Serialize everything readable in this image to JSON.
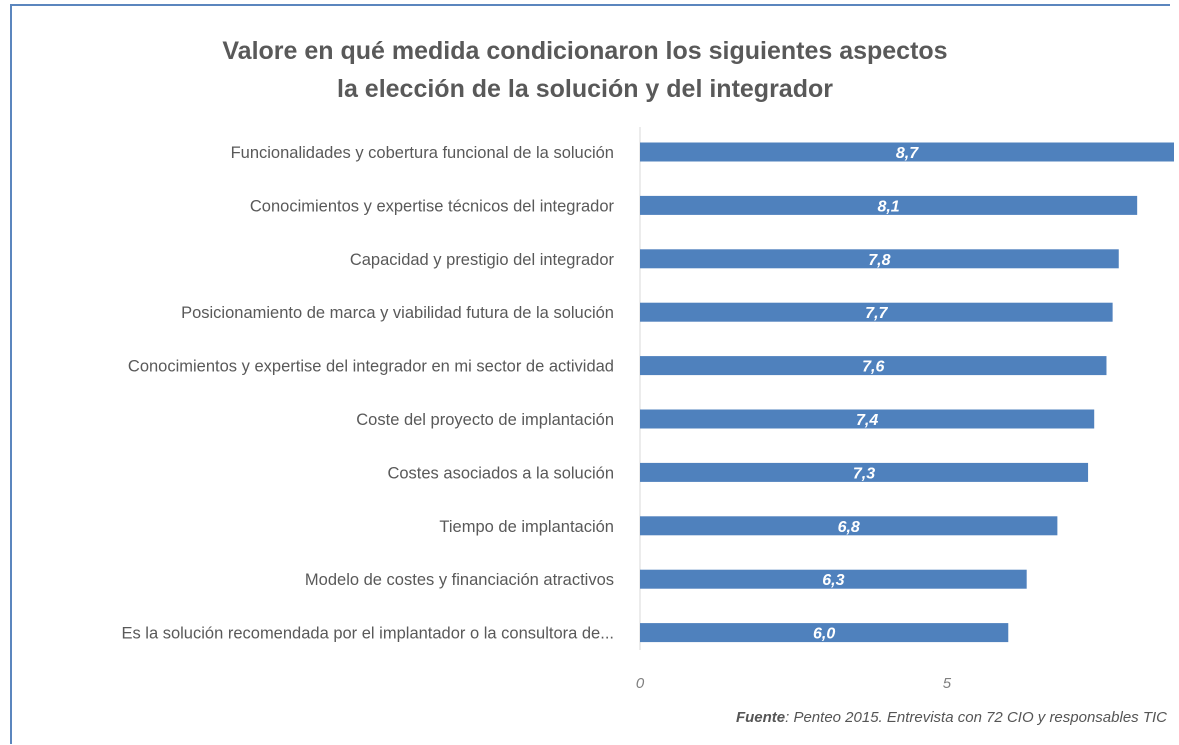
{
  "title_line1": "Valore en qué medida condicionaron los siguientes aspectos",
  "title_line2": "la elección de la solución y del integrador",
  "source_label": "Fuente",
  "source_text": ": Penteo 2015. Entrevista con 72 CIO y responsables TIC",
  "colors": {
    "bar": "#4f81bd",
    "frame": "#5b86be",
    "label": "#595959"
  },
  "chart_data": {
    "type": "bar",
    "orientation": "horizontal",
    "categories": [
      "Funcionalidades y cobertura funcional de la solución",
      "Conocimientos y expertise técnicos del integrador",
      "Capacidad y prestigio del integrador",
      "Posicionamiento de marca y viabilidad futura de la solución",
      "Conocimientos y expertise del integrador en mi sector de actividad",
      "Coste del proyecto de implantación",
      "Costes asociados a la solución",
      "Tiempo de implantación",
      "Modelo de costes y financiación atractivos",
      "Es la solución recomendada por el implantador o la consultora de..."
    ],
    "values": [
      8.7,
      8.1,
      7.8,
      7.7,
      7.6,
      7.4,
      7.3,
      6.8,
      6.3,
      6.0
    ],
    "data_labels": [
      "8,7",
      "8,1",
      "7,8",
      "7,7",
      "7,6",
      "7,4",
      "7,3",
      "6,8",
      "6,3",
      "6,0"
    ],
    "x_ticks": [
      0,
      5
    ],
    "x_tick_labels": [
      "0",
      "5"
    ],
    "xlim": [
      0,
      8.7
    ],
    "grid": false,
    "legend": "none"
  }
}
